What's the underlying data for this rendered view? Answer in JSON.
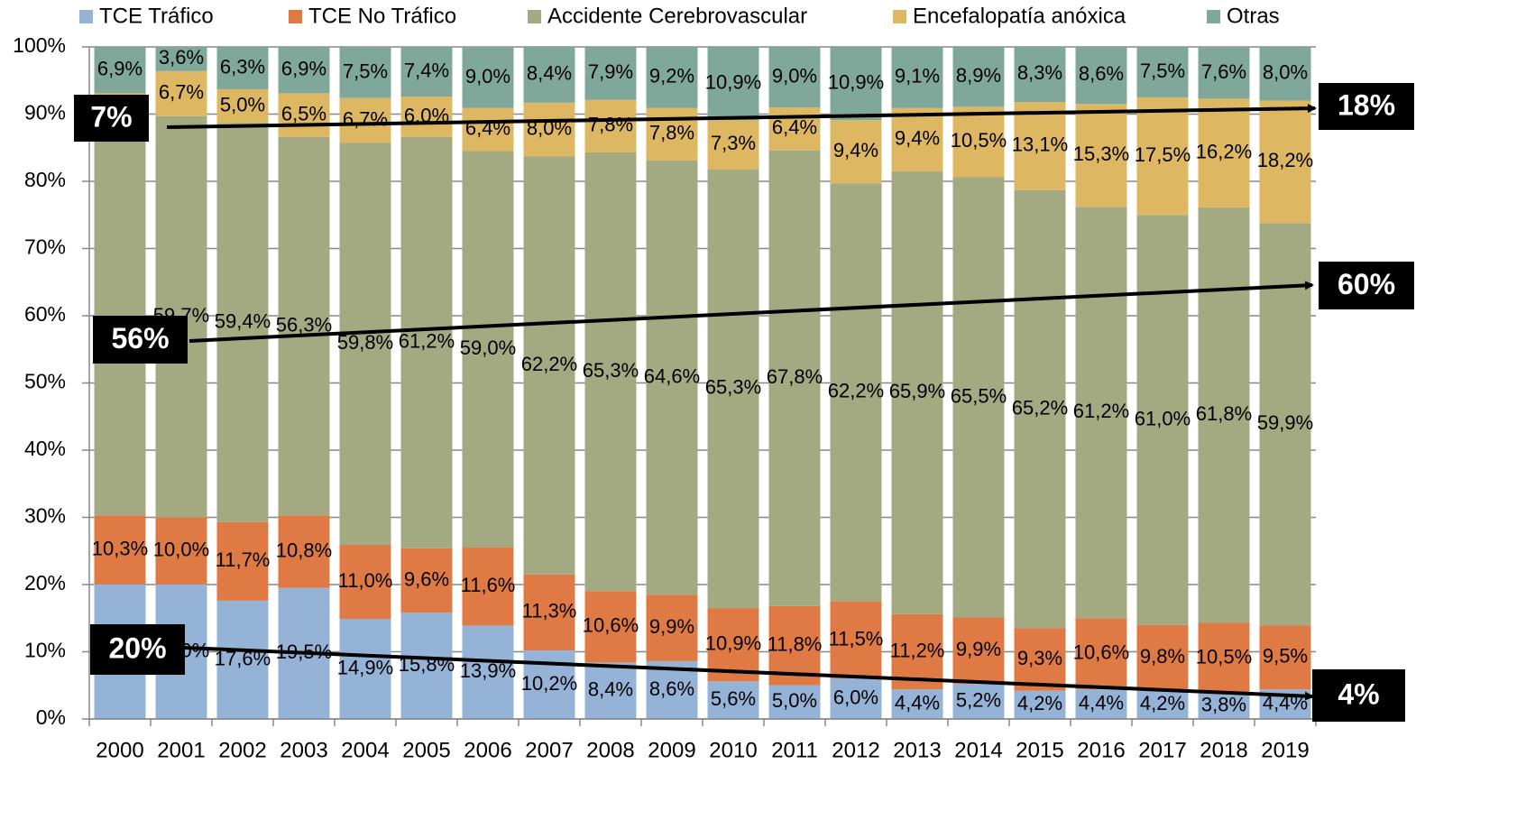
{
  "chart_data": {
    "type": "stacked_bar",
    "categories": [
      "2000",
      "2001",
      "2002",
      "2003",
      "2004",
      "2005",
      "2006",
      "2007",
      "2008",
      "2009",
      "2010",
      "2011",
      "2012",
      "2013",
      "2014",
      "2015",
      "2016",
      "2017",
      "2018",
      "2019"
    ],
    "series": [
      {
        "name": "TCE Tráfico",
        "color": "#95b3d7",
        "values": [
          20.0,
          20.0,
          17.6,
          19.5,
          14.9,
          15.8,
          13.9,
          10.2,
          8.4,
          8.6,
          5.6,
          5.0,
          6.0,
          4.4,
          5.2,
          4.2,
          4.4,
          4.2,
          3.8,
          4.4
        ],
        "value_labels": [
          "20,0%",
          "20,0%",
          "17,6%",
          "19,5%",
          "14,9%",
          "15,8%",
          "13,9%",
          "10,2%",
          "8,4%",
          "8,6%",
          "5,6%",
          "5,0%",
          "6,0%",
          "4,4%",
          "5,2%",
          "4,2%",
          "4,4%",
          "4,2%",
          "3,8%",
          "4,4%"
        ]
      },
      {
        "name": "TCE No Tráfico",
        "color": "#e07a45",
        "values": [
          10.3,
          10.0,
          11.7,
          10.8,
          11.0,
          9.6,
          11.6,
          11.3,
          10.6,
          9.9,
          10.9,
          11.8,
          11.5,
          11.2,
          9.9,
          9.3,
          10.6,
          9.8,
          10.5,
          9.5
        ],
        "value_labels": [
          "10,3%",
          "10,0%",
          "11,7%",
          "10,8%",
          "11,0%",
          "9,6%",
          "11,6%",
          "11,3%",
          "10,6%",
          "9,9%",
          "10,9%",
          "11,8%",
          "11,5%",
          "11,2%",
          "9,9%",
          "9,3%",
          "10,6%",
          "9,8%",
          "10,5%",
          "9,5%"
        ]
      },
      {
        "name": "Accidente Cerebrovascular",
        "color": "#a3a980",
        "values": [
          55.9,
          59.7,
          59.4,
          56.3,
          59.8,
          61.2,
          59.0,
          62.2,
          65.3,
          64.6,
          65.3,
          67.8,
          62.2,
          65.9,
          65.5,
          65.2,
          61.2,
          61.0,
          61.8,
          59.9
        ],
        "value_labels": [
          "55,9%",
          "59,7%",
          "59,4%",
          "56,3%",
          "59,8%",
          "61,2%",
          "59,0%",
          "62,2%",
          "65,3%",
          "64,6%",
          "65,3%",
          "67,8%",
          "62,2%",
          "65,9%",
          "65,5%",
          "65,2%",
          "61,2%",
          "61,0%",
          "61,8%",
          "59,9%"
        ]
      },
      {
        "name": "Encefalopatía anóxica",
        "color": "#ddb762",
        "values": [
          6.9,
          6.7,
          5.0,
          6.5,
          6.7,
          6.0,
          6.4,
          8.0,
          7.8,
          7.8,
          7.3,
          6.4,
          9.4,
          9.4,
          10.5,
          13.1,
          15.3,
          17.5,
          16.2,
          18.2
        ],
        "value_labels": [
          "6,9%",
          "6,7%",
          "5,0%",
          "6,5%",
          "6,7%",
          "6,0%",
          "6,4%",
          "8,0%",
          "7,8%",
          "7,8%",
          "7,3%",
          "6,4%",
          "9,4%",
          "9,4%",
          "10,5%",
          "13,1%",
          "15,3%",
          "17,5%",
          "16,2%",
          "18,2%"
        ]
      },
      {
        "name": "Otras",
        "color": "#7fa89b",
        "values": [
          6.9,
          3.6,
          6.3,
          6.9,
          7.5,
          7.4,
          9.0,
          8.4,
          7.9,
          9.2,
          10.9,
          9.0,
          10.9,
          9.1,
          8.9,
          8.3,
          8.6,
          7.5,
          7.6,
          8.0
        ],
        "value_labels": [
          "6,9%",
          "3,6%",
          "6,3%",
          "6,9%",
          "7,5%",
          "7,4%",
          "9,0%",
          "8,4%",
          "7,9%",
          "9,2%",
          "10,9%",
          "9,0%",
          "10,9%",
          "9,1%",
          "8,9%",
          "8,3%",
          "8,6%",
          "7,5%",
          "7,6%",
          "8,0%"
        ]
      }
    ],
    "ylim": [
      0,
      100
    ],
    "yticks": [
      {
        "value": 0,
        "label": "0%"
      },
      {
        "value": 10,
        "label": "10%"
      },
      {
        "value": 20,
        "label": "20%"
      },
      {
        "value": 30,
        "label": "30%"
      },
      {
        "value": 40,
        "label": "40%"
      },
      {
        "value": 50,
        "label": "50%"
      },
      {
        "value": 60,
        "label": "60%"
      },
      {
        "value": 70,
        "label": "70%"
      },
      {
        "value": 80,
        "label": "80%"
      },
      {
        "value": 90,
        "label": "90%"
      },
      {
        "value": 100,
        "label": "100%"
      }
    ],
    "grid": true,
    "legend": "top",
    "annotations": [
      "7%",
      "18%",
      "56%",
      "60%",
      "20%",
      "4%"
    ]
  }
}
